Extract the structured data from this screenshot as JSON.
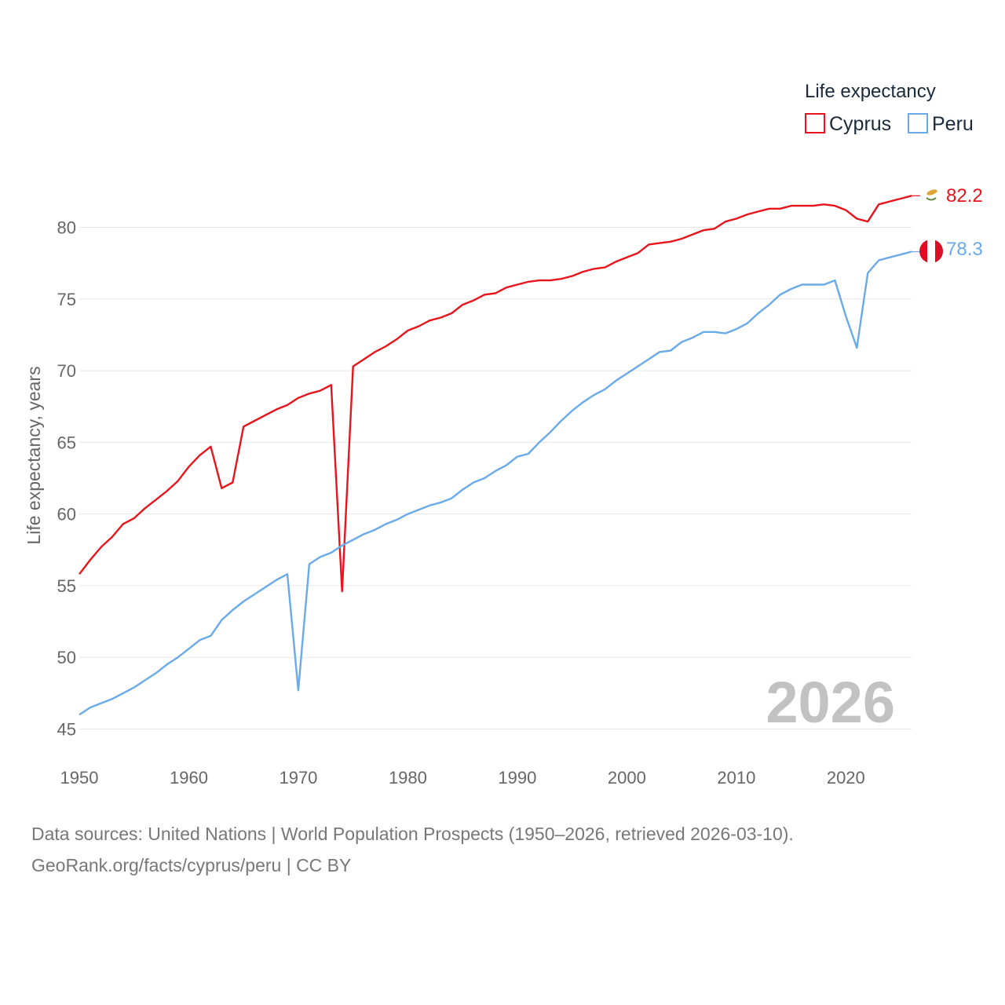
{
  "chart_data": {
    "type": "line",
    "ylabel": "Life expectancy, years",
    "xlabel": "",
    "xlim": [
      1950,
      2026
    ],
    "ylim": [
      45,
      84
    ],
    "x_ticks": [
      1950,
      1960,
      1970,
      1980,
      1990,
      2000,
      2010,
      2020
    ],
    "y_ticks": [
      45,
      50,
      55,
      60,
      65,
      70,
      75,
      80
    ],
    "grid": true,
    "legend": {
      "title": "Life expectancy",
      "position": "top-right"
    },
    "year_stamp": "2026",
    "x": [
      1950,
      1951,
      1952,
      1953,
      1954,
      1955,
      1956,
      1957,
      1958,
      1959,
      1960,
      1961,
      1962,
      1963,
      1964,
      1965,
      1966,
      1967,
      1968,
      1969,
      1970,
      1971,
      1972,
      1973,
      1974,
      1975,
      1976,
      1977,
      1978,
      1979,
      1980,
      1981,
      1982,
      1983,
      1984,
      1985,
      1986,
      1987,
      1988,
      1989,
      1990,
      1991,
      1992,
      1993,
      1994,
      1995,
      1996,
      1997,
      1998,
      1999,
      2000,
      2001,
      2002,
      2003,
      2004,
      2005,
      2006,
      2007,
      2008,
      2009,
      2010,
      2011,
      2012,
      2013,
      2014,
      2015,
      2016,
      2017,
      2018,
      2019,
      2020,
      2021,
      2022,
      2023,
      2024,
      2025,
      2026
    ],
    "series": [
      {
        "name": "Cyprus",
        "color": "#e8141c",
        "flag_icon": "cyprus-flag-icon",
        "end_label": "82.2",
        "values": [
          55.8,
          56.8,
          57.7,
          58.4,
          59.3,
          59.7,
          60.4,
          61.0,
          61.6,
          62.3,
          63.3,
          64.1,
          64.7,
          61.8,
          62.2,
          66.1,
          66.5,
          66.9,
          67.3,
          67.6,
          68.1,
          68.4,
          68.6,
          69.0,
          54.6,
          70.3,
          70.8,
          71.3,
          71.7,
          72.2,
          72.8,
          73.1,
          73.5,
          73.7,
          74.0,
          74.6,
          74.9,
          75.3,
          75.4,
          75.8,
          76.0,
          76.2,
          76.3,
          76.3,
          76.4,
          76.6,
          76.9,
          77.1,
          77.2,
          77.6,
          77.9,
          78.2,
          78.8,
          78.9,
          79.0,
          79.2,
          79.5,
          79.8,
          79.9,
          80.4,
          80.6,
          80.9,
          81.1,
          81.3,
          81.3,
          81.5,
          81.5,
          81.5,
          81.6,
          81.5,
          81.2,
          80.6,
          80.4,
          81.6,
          81.8,
          82.0,
          82.2
        ]
      },
      {
        "name": "Peru",
        "color": "#6aaae8",
        "flag_icon": "peru-flag-icon",
        "end_label": "78.3",
        "values": [
          46.0,
          46.5,
          46.8,
          47.1,
          47.5,
          47.9,
          48.4,
          48.9,
          49.5,
          50.0,
          50.6,
          51.2,
          51.5,
          52.6,
          53.3,
          53.9,
          54.4,
          54.9,
          55.4,
          55.8,
          47.7,
          56.5,
          57.0,
          57.3,
          57.8,
          58.2,
          58.6,
          58.9,
          59.3,
          59.6,
          60.0,
          60.3,
          60.6,
          60.8,
          61.1,
          61.7,
          62.2,
          62.5,
          63.0,
          63.4,
          64.0,
          64.2,
          65.0,
          65.7,
          66.5,
          67.2,
          67.8,
          68.3,
          68.7,
          69.3,
          69.8,
          70.3,
          70.8,
          71.3,
          71.4,
          72.0,
          72.3,
          72.7,
          72.7,
          72.6,
          72.9,
          73.3,
          74.0,
          74.6,
          75.3,
          75.7,
          76.0,
          76.0,
          76.0,
          76.3,
          73.8,
          71.6,
          76.8,
          77.7,
          77.9,
          78.1,
          78.3
        ]
      }
    ]
  },
  "footer": {
    "source_line": "Data sources: United Nations | World Population Prospects (1950–2026, retrieved 2026-03-10).",
    "credit_line": "GeoRank.org/facts/cyprus/peru | CC BY"
  }
}
